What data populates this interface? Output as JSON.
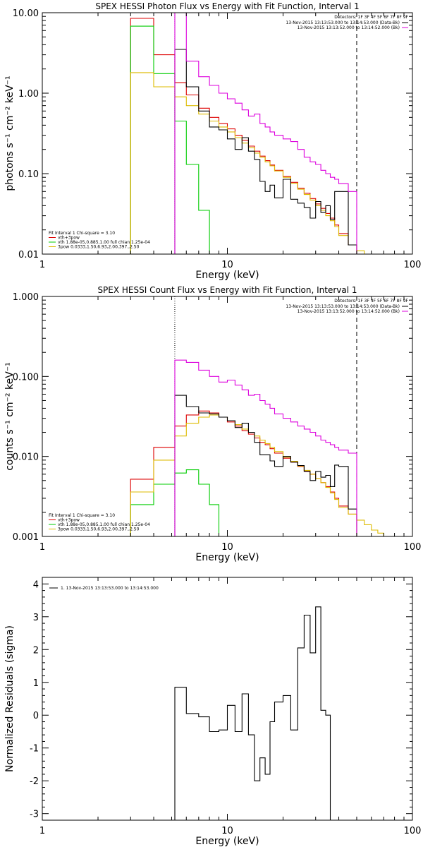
{
  "chart_data": [
    {
      "type": "line",
      "title": "SPEX HESSI Photon Flux vs Energy with Fit Function, Interval 1",
      "xlabel": "Energy (keV)",
      "ylabel": "photons s⁻¹ cm⁻² keV⁻¹",
      "xscale": "log",
      "yscale": "log",
      "xlim": [
        1,
        100
      ],
      "ylim": [
        0.01,
        10
      ],
      "x_ticks": [
        "1",
        "10",
        "100"
      ],
      "y_ticks": [
        "0.01",
        "0.10",
        "1.00",
        "10.00"
      ],
      "vlines": [
        {
          "x": 5.2,
          "style": "dotted",
          "color": "#000000"
        },
        {
          "x": 50,
          "style": "dashed",
          "color": "#000000"
        }
      ],
      "detectors_text": "Detectors: 1F 3F 4F 5F 6F 7F 8F 9F",
      "legend_top": [
        {
          "text": "13-Nov-2015 13:13:53.000 to 13:14:53.000 (Data-Bk)",
          "color": "#000000"
        },
        {
          "text": "13-Nov-2015 13:13:52.000 to 13:14:52.000 (Bk)",
          "color": "#dd00dd"
        }
      ],
      "legend_bottom": [
        {
          "text": "Fit Interval 1   Chi-square = 3.10",
          "color": "#000000",
          "swatch": false
        },
        {
          "text": "vth+3pow",
          "color": "#dd0000",
          "swatch": true
        },
        {
          "text": "vth 1.88e-05,0.885,1.00  full chian 1.25e-04",
          "color": "#00cc00",
          "swatch": true
        },
        {
          "text": "3pow 0.0333,1.50,6.93,2.00,397.,2.50",
          "color": "#ddbb00",
          "swatch": true
        }
      ],
      "series": [
        {
          "name": "vth+3pow",
          "color": "#dd0000",
          "edges": [
            3,
            4,
            5.2,
            6,
            7,
            8,
            9,
            10,
            11,
            12,
            13,
            14,
            15,
            16,
            17,
            18,
            20,
            22,
            24,
            26,
            28,
            30,
            32,
            34,
            36,
            38,
            40,
            45,
            50
          ],
          "values": [
            8.5,
            3.0,
            1.35,
            0.95,
            0.65,
            0.5,
            0.42,
            0.36,
            0.3,
            0.26,
            0.22,
            0.19,
            0.165,
            0.145,
            0.128,
            0.11,
            0.092,
            0.078,
            0.066,
            0.057,
            0.049,
            0.042,
            0.037,
            0.032,
            0.028,
            0.023,
            0.018,
            0.013
          ]
        },
        {
          "name": "vth",
          "color": "#00cc00",
          "edges": [
            3,
            4,
            5.2,
            6,
            7,
            8
          ],
          "values": [
            6.8,
            1.75,
            0.45,
            0.13,
            0.035
          ]
        },
        {
          "name": "3pow",
          "color": "#ddbb00",
          "edges": [
            3,
            4,
            5.2,
            6,
            7,
            8,
            9,
            10,
            11,
            12,
            13,
            14,
            15,
            16,
            17,
            18,
            20,
            22,
            24,
            26,
            28,
            30,
            32,
            34,
            36,
            38,
            40,
            45,
            50,
            55
          ],
          "values": [
            1.8,
            1.2,
            0.9,
            0.7,
            0.55,
            0.45,
            0.38,
            0.33,
            0.28,
            0.24,
            0.21,
            0.18,
            0.16,
            0.14,
            0.125,
            0.108,
            0.09,
            0.076,
            0.064,
            0.055,
            0.047,
            0.04,
            0.035,
            0.03,
            0.026,
            0.022,
            0.017,
            0.013,
            0.011
          ]
        },
        {
          "name": "Data-Bk",
          "color": "#000000",
          "edges": [
            5.2,
            6,
            7,
            8,
            9,
            10,
            11,
            12,
            13,
            14,
            15,
            16,
            17,
            18,
            20,
            22,
            24,
            26,
            28,
            30,
            32,
            34,
            36,
            38,
            40,
            45,
            50
          ],
          "values": [
            3.5,
            1.2,
            0.6,
            0.38,
            0.35,
            0.27,
            0.2,
            0.28,
            0.19,
            0.15,
            0.08,
            0.06,
            0.072,
            0.05,
            0.085,
            0.048,
            0.043,
            0.038,
            0.028,
            0.045,
            0.033,
            0.04,
            0.027,
            0.06,
            0.06,
            0.013
          ]
        },
        {
          "name": "Bk",
          "color": "#dd00dd",
          "edges": [
            5.2,
            6,
            7,
            8,
            9,
            10,
            11,
            12,
            13,
            14,
            15,
            16,
            17,
            18,
            20,
            22,
            24,
            26,
            28,
            30,
            32,
            34,
            36,
            38,
            40,
            45,
            50
          ],
          "values": [
            10,
            2.5,
            1.6,
            1.25,
            1.0,
            0.85,
            0.75,
            0.62,
            0.52,
            0.55,
            0.42,
            0.38,
            0.33,
            0.3,
            0.27,
            0.25,
            0.2,
            0.16,
            0.14,
            0.13,
            0.11,
            0.1,
            0.09,
            0.085,
            0.075,
            0.06
          ]
        }
      ]
    },
    {
      "type": "line",
      "title": "SPEX HESSI Count Flux vs Energy with Fit Function, Interval 1",
      "xlabel": "Energy (keV)",
      "ylabel": "counts s⁻¹ cm⁻² keV⁻¹",
      "xscale": "log",
      "yscale": "log",
      "xlim": [
        1,
        100
      ],
      "ylim": [
        0.001,
        1
      ],
      "x_ticks": [
        "1",
        "10",
        "100"
      ],
      "y_ticks": [
        "0.001",
        "0.010",
        "0.100",
        "1.000"
      ],
      "vlines": [
        {
          "x": 5.2,
          "style": "dotted",
          "color": "#000000"
        },
        {
          "x": 50,
          "style": "dashed",
          "color": "#000000"
        }
      ],
      "detectors_text": "Detectors: 1F 3F 4F 5F 6F 7F 8F 9F",
      "legend_top": [
        {
          "text": "13-Nov-2015 13:13:53.000 to 13:14:53.000 (Data-Bk)",
          "color": "#000000"
        },
        {
          "text": "13-Nov-2015 13:13:52.000 to 13:14:52.000 (Bk)",
          "color": "#dd00dd"
        }
      ],
      "legend_bottom": [
        {
          "text": "Fit Interval 1   Chi-square = 3.10",
          "color": "#000000",
          "swatch": false
        },
        {
          "text": "vth+3pow",
          "color": "#dd0000",
          "swatch": true
        },
        {
          "text": "vth 1.88e-05,0.885,1.00  full chian 1.25e-04",
          "color": "#00cc00",
          "swatch": true
        },
        {
          "text": "3pow 0.0333,1.50,6.93,2.00,397.,2.50",
          "color": "#ddbb00",
          "swatch": true
        }
      ],
      "series": [
        {
          "name": "vth+3pow",
          "color": "#dd0000",
          "edges": [
            3,
            4,
            5.2,
            6,
            7,
            8,
            9,
            10,
            11,
            12,
            13,
            14,
            15,
            16,
            17,
            18,
            20,
            22,
            24,
            26,
            28,
            30,
            32,
            34,
            36,
            38,
            40,
            45,
            50
          ],
          "values": [
            0.0052,
            0.013,
            0.024,
            0.033,
            0.037,
            0.035,
            0.031,
            0.027,
            0.024,
            0.021,
            0.019,
            0.017,
            0.015,
            0.014,
            0.0125,
            0.011,
            0.0095,
            0.0085,
            0.0075,
            0.0066,
            0.006,
            0.0053,
            0.0047,
            0.0042,
            0.0036,
            0.003,
            0.0024,
            0.0019
          ]
        },
        {
          "name": "vth",
          "color": "#00cc00",
          "edges": [
            3,
            4,
            5.2,
            6,
            7,
            8,
            9
          ],
          "values": [
            0.0025,
            0.0045,
            0.0062,
            0.0068,
            0.0045,
            0.0025
          ]
        },
        {
          "name": "3pow",
          "color": "#ddbb00",
          "edges": [
            3,
            4,
            5.2,
            6,
            7,
            8,
            9,
            10,
            11,
            12,
            13,
            14,
            15,
            16,
            17,
            18,
            20,
            22,
            24,
            26,
            28,
            30,
            32,
            34,
            36,
            38,
            40,
            45,
            50,
            55,
            60,
            65,
            70,
            80
          ],
          "values": [
            0.0036,
            0.009,
            0.018,
            0.026,
            0.031,
            0.033,
            0.031,
            0.028,
            0.025,
            0.022,
            0.02,
            0.018,
            0.016,
            0.0145,
            0.013,
            0.0115,
            0.0098,
            0.0087,
            0.0076,
            0.0067,
            0.006,
            0.0053,
            0.0047,
            0.0041,
            0.0035,
            0.0029,
            0.0023,
            0.0019,
            0.0016,
            0.0014,
            0.0012,
            0.0011,
            0.001
          ]
        },
        {
          "name": "Data-Bk",
          "color": "#000000",
          "edges": [
            5.2,
            6,
            7,
            8,
            9,
            10,
            11,
            12,
            13,
            14,
            15,
            16,
            17,
            18,
            20,
            22,
            24,
            26,
            28,
            30,
            32,
            34,
            36,
            38,
            40,
            45,
            50
          ],
          "values": [
            0.058,
            0.042,
            0.035,
            0.034,
            0.031,
            0.028,
            0.023,
            0.026,
            0.02,
            0.015,
            0.0105,
            0.0105,
            0.0088,
            0.0075,
            0.01,
            0.0085,
            0.0077,
            0.0065,
            0.005,
            0.0065,
            0.0055,
            0.0058,
            0.0042,
            0.0078,
            0.0075,
            0.0022
          ]
        },
        {
          "name": "Bk",
          "color": "#dd00dd",
          "edges": [
            5.2,
            6,
            7,
            8,
            9,
            10,
            11,
            12,
            13,
            14,
            15,
            16,
            17,
            18,
            20,
            22,
            24,
            26,
            28,
            30,
            32,
            34,
            36,
            38,
            40,
            45,
            50
          ],
          "values": [
            0.16,
            0.15,
            0.12,
            0.1,
            0.085,
            0.09,
            0.078,
            0.068,
            0.058,
            0.06,
            0.05,
            0.045,
            0.04,
            0.034,
            0.03,
            0.027,
            0.024,
            0.022,
            0.02,
            0.018,
            0.016,
            0.015,
            0.014,
            0.013,
            0.012,
            0.011
          ]
        }
      ]
    },
    {
      "type": "line",
      "title": "",
      "xlabel": "Energy (keV)",
      "ylabel": "Normalized Residuals (sigma)",
      "xscale": "log",
      "yscale": "linear",
      "xlim": [
        1,
        100
      ],
      "ylim": [
        -3.2,
        4.2
      ],
      "x_ticks": [
        "1",
        "10",
        "100"
      ],
      "y_ticks": [
        "-3",
        "-2",
        "-1",
        "0",
        "1",
        "2",
        "3",
        "4"
      ],
      "legend_top": [
        {
          "text": "1. 13-Nov-2015 13:13:53.000 to 13:14:53.000",
          "color": "#000000"
        }
      ],
      "series": [
        {
          "name": "",
          "color": "#000000",
          "edges": [
            5.2,
            6,
            7,
            8,
            9,
            10,
            11,
            12,
            13,
            14,
            15,
            16,
            17,
            18,
            20,
            22,
            24,
            26,
            28,
            30,
            32,
            34,
            36,
            38,
            40,
            45,
            50
          ],
          "values": [
            0.85,
            0.05,
            -0.05,
            -0.5,
            -0.45,
            0.3,
            -0.5,
            0.65,
            -0.6,
            -2.0,
            -1.3,
            -1.8,
            -0.2,
            0.4,
            0.6,
            -0.45,
            2.05,
            3.05,
            1.9,
            3.3,
            0.15,
            0.0,
            -3.2,
            -3.2,
            -3.2,
            -3.2
          ]
        }
      ]
    }
  ]
}
